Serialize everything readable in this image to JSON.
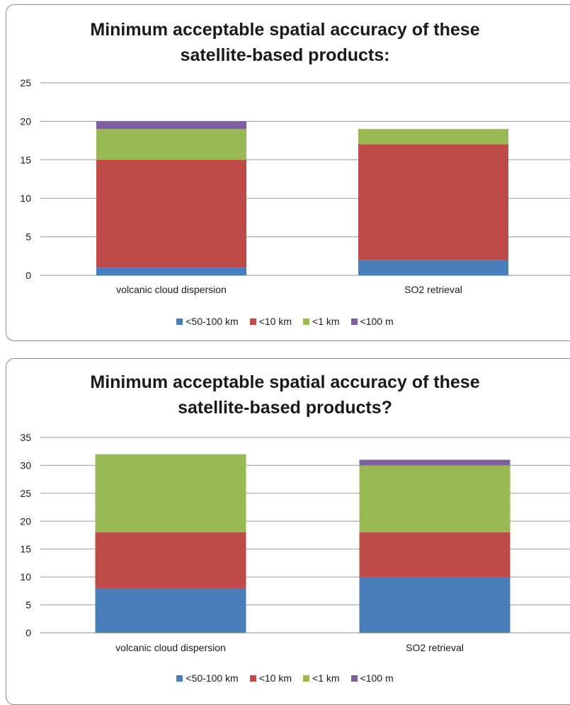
{
  "chart_data": [
    {
      "type": "bar",
      "stacked": true,
      "title_lines": [
        "Minimum acceptable spatial accuracy of these",
        "satellite-based products:"
      ],
      "categories": [
        "volcanic cloud dispersion",
        "SO2 retrieval"
      ],
      "series": [
        {
          "name": "<50-100 km",
          "color": "#4a7ebb",
          "values": [
            1,
            2
          ]
        },
        {
          "name": "<10 km",
          "color": "#be4b48",
          "values": [
            14,
            15
          ]
        },
        {
          "name": "<1 km",
          "color": "#98b954",
          "values": [
            4,
            2
          ]
        },
        {
          "name": "<100 m",
          "color": "#7d5fa0",
          "values": [
            1,
            0
          ]
        }
      ],
      "ylim": [
        0,
        25
      ],
      "yticks": [
        0,
        5,
        10,
        15,
        20,
        25
      ],
      "grid": true,
      "legend": "bottom"
    },
    {
      "type": "bar",
      "stacked": true,
      "title_lines": [
        "Minimum acceptable spatial accuracy of these",
        "satellite-based products?"
      ],
      "categories": [
        "volcanic cloud dispersion",
        "SO2 retrieval"
      ],
      "series": [
        {
          "name": "<50-100 km",
          "color": "#4a7ebb",
          "values": [
            8,
            10
          ]
        },
        {
          "name": "<10 km",
          "color": "#be4b48",
          "values": [
            10,
            8
          ]
        },
        {
          "name": "<1 km",
          "color": "#98b954",
          "values": [
            14,
            12
          ]
        },
        {
          "name": "<100 m",
          "color": "#7d5fa0",
          "values": [
            0,
            1
          ]
        }
      ],
      "ylim": [
        0,
        35
      ],
      "yticks": [
        0,
        5,
        10,
        15,
        20,
        25,
        30,
        35
      ],
      "grid": true,
      "legend": "bottom"
    }
  ]
}
